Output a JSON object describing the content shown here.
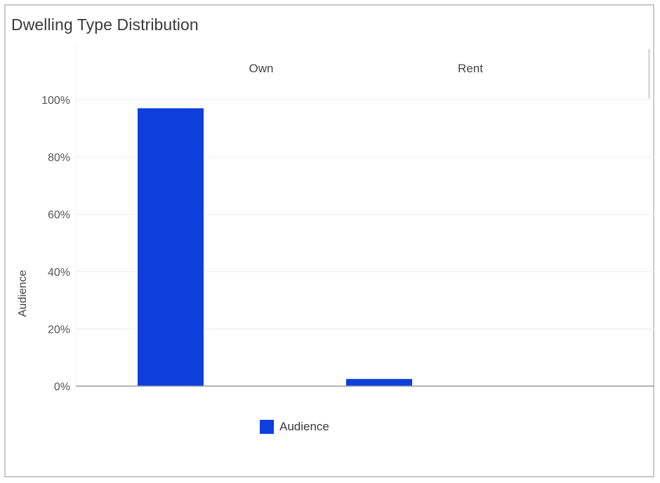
{
  "panel": {
    "title": "Dwelling Type Distribution"
  },
  "chart_data": {
    "type": "bar",
    "title": "Dwelling Type Distribution",
    "categories": [
      "Own",
      "Rent"
    ],
    "series": [
      {
        "name": "Audience",
        "values": [
          97,
          2.5
        ],
        "color": "#0c3fdc"
      }
    ],
    "xlabel": "",
    "ylabel": "Audience",
    "ylim": [
      0,
      100
    ],
    "yticks": [
      "0%",
      "20%",
      "40%",
      "60%",
      "80%",
      "100%"
    ],
    "grid": true,
    "category_labels_position": "top",
    "legend": {
      "placement": "bottom",
      "label": "Audience"
    }
  }
}
